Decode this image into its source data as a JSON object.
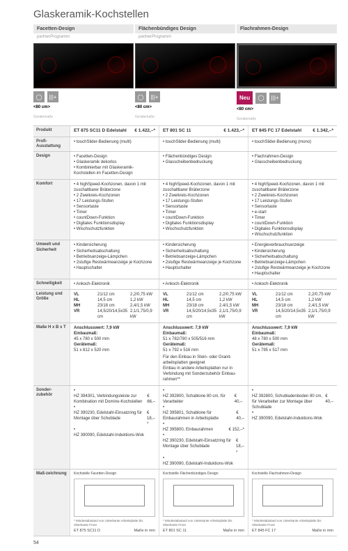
{
  "title": "Glaskeramik-Kochstellen",
  "page_number": "54",
  "designs": [
    {
      "name": "Facetten-Design",
      "partner": "partnerProgramm",
      "width": "<80 cm>",
      "neu": false
    },
    {
      "name": "Flächenbündiges Design",
      "partner": "partnerProgramm",
      "width": "<80 cm>",
      "neu": false
    },
    {
      "name": "Flachrahmen-Design",
      "partner": "",
      "width": "<80 cm>",
      "neu": true
    }
  ],
  "neu_label": "Neu",
  "products": [
    {
      "name": "ET 875 SC11 D Edelstahl",
      "price": "€ 1.422,–*"
    },
    {
      "name": "ET 801 SC 11",
      "price": "€ 1.423,–*"
    },
    {
      "name": "ET 845 FC 17 Edelstahl",
      "price": "€ 1.342,–*"
    }
  ],
  "rows": {
    "produkt": "Produkt",
    "profi": "Profi-Ausstattung",
    "profi_vals": [
      "• touchSlider-Bedienung (multi)",
      "• touchSlider-Bedienung (multi)",
      "• touchSlider-Bedienung (mono)"
    ],
    "design": "Design",
    "design_vals": [
      [
        "Facetten-Design",
        "Glaskeramik dekorlos",
        "Kombinierbar mit Glaskeramik-Kochstellen im Facetten-Design"
      ],
      [
        "Flächenbündiges Design",
        "Glasscheibenbedruckung"
      ],
      [
        "Flachrahmen-Design",
        "Glasscheibenbedruckung"
      ]
    ],
    "komfort": "Komfort",
    "komfort_vals": [
      [
        "4 highSpeed-Kochzonen, davon 1 mit zuschaltbarer Bräterzone",
        "2 Zweikreis-Kochzonen",
        "17 Leistungs-Stufen",
        "Sensortaste",
        "Timer",
        "countDown-Funktion",
        "Digitales Funktionsdisplay",
        "Wischschutzfunktion"
      ],
      [
        "4 highSpeed-Kochzonen, davon 1 mit zuschaltbarer Bräterzone",
        "2 Zweikreis-Kochzonen",
        "17 Leistungs-Stufen",
        "Sensortaste",
        "Timer",
        "countDown-Funktion",
        "Digitales Funktionsdisplay",
        "Wischschutzfunktion"
      ],
      [
        "4 highSpeed-Kochzonen, davon 1 mit zuschaltbarer Bräterzone",
        "2 Zweikreis-Kochzonen",
        "17 Leistungs-Stufen",
        "Sensortaste",
        "e-start",
        "Timer",
        "countDown-Funktion",
        "Digitales Funktionsdisplay",
        "Wischschutzfunktion"
      ]
    ],
    "umwelt": "Umwelt und Sicherheit",
    "umwelt_vals": [
      [
        "Kindersicherung",
        "Sicherheitsabschaltung",
        "Betriebsanzeige-Lämpchen",
        "2stufige Restwärmeanzeige je Kochzone",
        "Hauptschalter"
      ],
      [
        "Kindersicherung",
        "Sicherheitsabschaltung",
        "Betriebsanzeige-Lämpchen",
        "2stufige Restwärmeanzeige je Kochzone",
        "Hauptschalter"
      ],
      [
        "Energieverbrauchsanzeige",
        "Kindersicherung",
        "Sicherheitsabschaltung",
        "Betriebsanzeige-Lämpchen",
        "2stufige Restwärmeanzeige je Kochzone",
        "Hauptschalter"
      ]
    ],
    "schnell": "Schnelligkeit",
    "schnell_vals": [
      "• Ankoch-Elektronik",
      "• Ankoch-Elektronik",
      "• Ankoch-Elektronik"
    ],
    "leistung": "Leistung und Größe",
    "leistung_vals": [
      {
        "VL": "21/12 cm",
        "VL_kw": "2,2/0,75 kW",
        "HL": "14,5 cm",
        "HL_kw": "1,2 kW",
        "MH": "23/18 cm",
        "MH_kw": "2,4/1,5 kW",
        "VR": "14,5/20/14,5x35 cm",
        "VR_kw": "2,1/1,75/0,9 kW"
      },
      {
        "VL": "21/12 cm",
        "VL_kw": "2,2/0,75 kW",
        "HL": "14,5 cm",
        "HL_kw": "1,2 kW",
        "MH": "23/18 cm",
        "MH_kw": "2,4/1,5 kW",
        "VR": "14,5/20/14,5x35 cm",
        "VR_kw": "2,1/1,75/0,9 kW"
      },
      {
        "VL": "21/12 cm",
        "VL_kw": "2,2/0,75 kW",
        "HL": "14,5 cm",
        "HL_kw": "1,2 kW",
        "MH": "23/18 cm",
        "MH_kw": "2,4/1,5 kW",
        "VR": "14,5/20/14,5x35 cm",
        "VR_kw": "2,1/1,75/0,9 kW"
      }
    ],
    "masse": "Maße H x B x T",
    "masse_vals": [
      {
        "anschluss": "Anschlusswert: 7,9 kW",
        "einbau": "Einbaumaß:",
        "einbau_v": "45 x 780 x 500 mm",
        "geraet": "Gerätemaß:",
        "geraet_v": "51 x 812 x 520 mm",
        "extra": ""
      },
      {
        "anschluss": "Anschlusswert: 7,9 kW",
        "einbau": "Einbaumaß:",
        "einbau_v": "51 x 782/780 x 505/516 mm",
        "geraet": "Gerätemaß:",
        "geraet_v": "51 x 792 x 516 mm",
        "extra": "Für den Einbau in Stein- oder Granit-arbeitsplatten geeignet\nEinbau in andere Arbeitsplatten nur in Verbindung mit Sonderzubehör Einbau-rahmen**"
      },
      {
        "anschluss": "Anschlusswert: 7,9 kW",
        "einbau": "Einbaumaß:",
        "einbau_v": "48 x 780 x 500 mm",
        "geraet": "Gerätemaß:",
        "geraet_v": "51 x 795 x 517 mm",
        "extra": ""
      }
    ],
    "sonder": "Sonder-zubehör",
    "sonder_vals": [
      [
        {
          "t": "HZ 394301, Verbindungsleiste zur Kombination mit Domino-Kochstellen",
          "p": "€ 66,–"
        },
        {
          "t": "HZ 390230, Edelstahl-Einsatzring für Montage über Schublade",
          "p": "€ 18,–*"
        },
        {
          "t": "HZ 390090, Edelstahl-Induktions-Wok",
          "p": ""
        }
      ],
      [
        {
          "t": "HZ 392800, Schablone 80 cm, für Verarbeiter",
          "p": "€ 40,–"
        },
        {
          "t": "HZ 395801, Schablone für Einbaurahmen in Arbeitsplatte",
          "p": "€ 40,–"
        },
        {
          "t": "HZ 395800, Einbaurahmen",
          "p": "€ 152,–*"
        },
        {
          "t": "HZ 390230, Edelstahl-Einsatzring für Montage über Schublade",
          "p": "€ 18,–*"
        },
        {
          "t": "HZ 390090, Edelstahl-Induktions-Wok",
          "p": ""
        }
      ],
      [
        {
          "t": "HZ 392800, Schubladenboden 80 cm, für Verarbeiter zur Montage über Schublade",
          "p": "€ 40,–"
        },
        {
          "t": "HZ 390090, Edelstahl-Induktions-Wok",
          "p": ""
        }
      ]
    ],
    "masszeich": "Maß-zeichnung",
    "diag_titles": [
      "Kochstelle Facetten-Design",
      "Kochstelle Flächenbündiges Design",
      "Kochstelle Flachrahmen-Design"
    ],
    "diag_foottext": "Maße in mm",
    "diag_models": [
      "ET 875 SC11 D",
      "ET 801 SC 11",
      "ET 845 FC 17"
    ],
    "diag_note": "* Mindestabstand von Unterkante Arbeitsplatte bis Oberkante Front"
  }
}
